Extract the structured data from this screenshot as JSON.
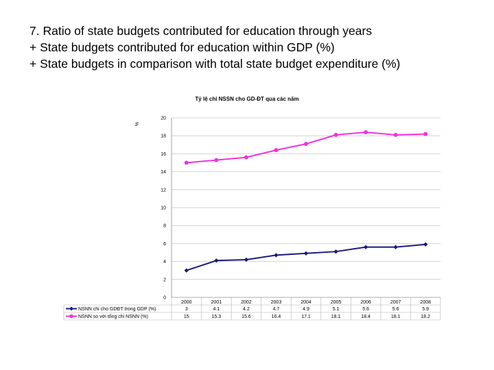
{
  "slide": {
    "title": "7. Ratio of state budgets contributed for education through years",
    "bullet1": "+ State budgets contributed for education within GDP (%)",
    "bullet2": "+ State budgets in comparison with total state budget expenditure (%)"
  },
  "chart_data": {
    "type": "line",
    "title": "Tỷ lệ chi NSSN cho GD-ĐT qua các năm",
    "ylabel": "%",
    "xlabel": "",
    "ylim": [
      0,
      20
    ],
    "yticks": [
      0,
      2,
      4,
      6,
      8,
      10,
      12,
      14,
      16,
      18,
      20
    ],
    "grid": true,
    "legend": "bottom-left (data table)",
    "categories": [
      "2000",
      "2001",
      "2002",
      "2003",
      "2004",
      "2005",
      "2006",
      "2007",
      "2008"
    ],
    "series": [
      {
        "name": "NSNN chi cho GDĐT trong GDP (%)",
        "color": "#1a1a7a",
        "marker": "diamond",
        "values": [
          3,
          4.1,
          4.2,
          4.7,
          4.9,
          5.1,
          5.6,
          5.6,
          5.9
        ]
      },
      {
        "name": "NSNN so với tổng chi NSNN (%)",
        "color": "#ee33dd",
        "marker": "circle",
        "values": [
          15,
          15.3,
          15.6,
          16.4,
          17.1,
          18.1,
          18.4,
          18.1,
          18.2
        ]
      }
    ]
  }
}
